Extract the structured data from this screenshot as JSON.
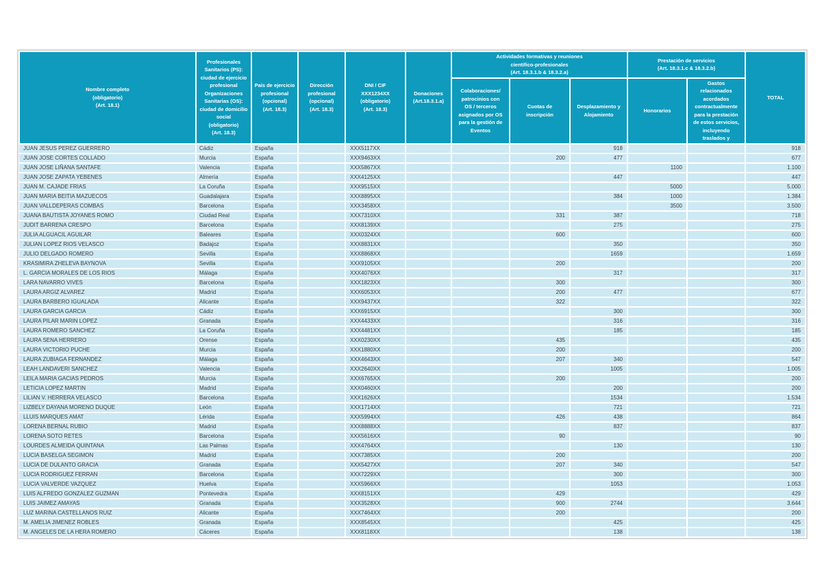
{
  "colors": {
    "header_bg": "#0f9bbd",
    "row_bg": "#cde9f4",
    "header_text": "#ffffff",
    "data_text": "#3d3d3d",
    "outer_border": "#d8d4d6"
  },
  "table": {
    "columns": {
      "nombre": "Nombre completo\n(obligatorio)\n(Art. 18.1)",
      "ciudad": "Profesionales\nSanitarios (PS):\nciudad de ejercicio\nprofesional\nOrganizaciones\nSanitarias (OS):\nciudad de domicilio\nsocial\n(obligatorio)\n(Art. 18.3)",
      "pais": "País de ejercicio\nprofesional\n(opcional)\n(Art. 18.3)",
      "direccion": "Dirección\nprofesional\n(opcional)\n(Art. 18.3)",
      "dni": "DNI / CIF\nXXX1234XX\n(obligatorio)\n(Art. 18.3)",
      "donaciones": "Donaciones\n(Art.18.3.1.a)",
      "grupo_actividades": "Actividades formativas y reuniones\ncientífico-profesionales\n(Art. 18.3.1.b & 18.3.2.a)",
      "colaboraciones": "Colaboraciones/\npatrocinios con\nOS / terceros\nasignados por OS\npara la gestión de\nEventos",
      "cuotas": "Cuotas de\ninscripción",
      "desplazamiento": "Desplazamiento y\nAlojamiento",
      "grupo_prestacion": "Prestación de servicios\n(Art. 18.3.1.c & 18.3.2.b)",
      "honorarios": "Honorarios",
      "gastos": "Gastos\nrelacionados\nacordados\ncontractualmente\npara la prestación\nde estos servicios,\nincluyendo\ntraslados y",
      "total": "TOTAL"
    },
    "rows": [
      {
        "nombre": "JUAN JESUS PEREZ GUERRERO",
        "ciudad": "Cádiz",
        "pais": "España",
        "direccion": "",
        "dni": "XXX5117XX",
        "donaciones": "",
        "colaboraciones": "",
        "cuotas": "",
        "desplazamiento": "918",
        "honorarios": "",
        "gastos": "",
        "total": "918"
      },
      {
        "nombre": "JUAN JOSE CORTES COLLADO",
        "ciudad": "Murcia",
        "pais": "España",
        "direccion": "",
        "dni": "XXX9463XX",
        "donaciones": "",
        "colaboraciones": "",
        "cuotas": "200",
        "desplazamiento": "477",
        "honorarios": "",
        "gastos": "",
        "total": "677"
      },
      {
        "nombre": "JUAN JOSE LIÑANA SANTAFE",
        "ciudad": "Valencia",
        "pais": "España",
        "direccion": "",
        "dni": "XXX5867XX",
        "donaciones": "",
        "colaboraciones": "",
        "cuotas": "",
        "desplazamiento": "",
        "honorarios": "1100",
        "gastos": "",
        "total": "1.100"
      },
      {
        "nombre": "JUAN JOSE ZAPATA YEBENES",
        "ciudad": "Almería",
        "pais": "España",
        "direccion": "",
        "dni": "XXX4125XX",
        "donaciones": "",
        "colaboraciones": "",
        "cuotas": "",
        "desplazamiento": "447",
        "honorarios": "",
        "gastos": "",
        "total": "447"
      },
      {
        "nombre": "JUAN M. CAJADE FRIAS",
        "ciudad": "La Coruña",
        "pais": "España",
        "direccion": "",
        "dni": "XXX9515XX",
        "donaciones": "",
        "colaboraciones": "",
        "cuotas": "",
        "desplazamiento": "",
        "honorarios": "5000",
        "gastos": "",
        "total": "5.000"
      },
      {
        "nombre": "JUAN MARIA BEITIA MAZUECOS",
        "ciudad": "Guadalajara",
        "pais": "España",
        "direccion": "",
        "dni": "XXX8895XX",
        "donaciones": "",
        "colaboraciones": "",
        "cuotas": "",
        "desplazamiento": "384",
        "honorarios": "1000",
        "gastos": "",
        "total": "1.384"
      },
      {
        "nombre": "JUAN VALLDEPERAS COMBAS",
        "ciudad": "Barcelona",
        "pais": "España",
        "direccion": "",
        "dni": "XXX3458XX",
        "donaciones": "",
        "colaboraciones": "",
        "cuotas": "",
        "desplazamiento": "",
        "honorarios": "3500",
        "gastos": "",
        "total": "3.500"
      },
      {
        "nombre": "JUANA BAUTISTA JOYANES ROMO",
        "ciudad": "Ciudad Real",
        "pais": "España",
        "direccion": "",
        "dni": "XXX7310XX",
        "donaciones": "",
        "colaboraciones": "",
        "cuotas": "331",
        "desplazamiento": "387",
        "honorarios": "",
        "gastos": "",
        "total": "718"
      },
      {
        "nombre": "JUDIT BARRENA CRESPO",
        "ciudad": "Barcelona",
        "pais": "España",
        "direccion": "",
        "dni": "XXX8139XX",
        "donaciones": "",
        "colaboraciones": "",
        "cuotas": "",
        "desplazamiento": "275",
        "honorarios": "",
        "gastos": "",
        "total": "275"
      },
      {
        "nombre": "JULIA ALGUACIL AGUILAR",
        "ciudad": "Baleares",
        "pais": "España",
        "direccion": "",
        "dni": "XXX0324XX",
        "donaciones": "",
        "colaboraciones": "",
        "cuotas": "600",
        "desplazamiento": "",
        "honorarios": "",
        "gastos": "",
        "total": "600"
      },
      {
        "nombre": "JULIAN LOPEZ RIOS VELASCO",
        "ciudad": "Badajoz",
        "pais": "España",
        "direccion": "",
        "dni": "XXX8831XX",
        "donaciones": "",
        "colaboraciones": "",
        "cuotas": "",
        "desplazamiento": "350",
        "honorarios": "",
        "gastos": "",
        "total": "350"
      },
      {
        "nombre": "JULIO DELGADO ROMERO",
        "ciudad": "Sevilla",
        "pais": "España",
        "direccion": "",
        "dni": "XXX8868XX",
        "donaciones": "",
        "colaboraciones": "",
        "cuotas": "",
        "desplazamiento": "1659",
        "honorarios": "",
        "gastos": "",
        "total": "1.659"
      },
      {
        "nombre": "KRASIMIRA ZHELEVA BAYNOVA",
        "ciudad": "Sevilla",
        "pais": "España",
        "direccion": "",
        "dni": "XXX9105XX",
        "donaciones": "",
        "colaboraciones": "",
        "cuotas": "200",
        "desplazamiento": "",
        "honorarios": "",
        "gastos": "",
        "total": "200"
      },
      {
        "nombre": "L. GARCIA MORALES DE LOS RIOS",
        "ciudad": "Málaga",
        "pais": "España",
        "direccion": "",
        "dni": "XXX4076XX",
        "donaciones": "",
        "colaboraciones": "",
        "cuotas": "",
        "desplazamiento": "317",
        "honorarios": "",
        "gastos": "",
        "total": "317"
      },
      {
        "nombre": "LARA NAVARRO VIVES",
        "ciudad": "Barcelona",
        "pais": "España",
        "direccion": "",
        "dni": "XXX1823XX",
        "donaciones": "",
        "colaboraciones": "",
        "cuotas": "300",
        "desplazamiento": "",
        "honorarios": "",
        "gastos": "",
        "total": "300"
      },
      {
        "nombre": "LAURA ARGIZ ALVAREZ",
        "ciudad": "Madrid",
        "pais": "España",
        "direccion": "",
        "dni": "XXX6053XX",
        "donaciones": "",
        "colaboraciones": "",
        "cuotas": "200",
        "desplazamiento": "477",
        "honorarios": "",
        "gastos": "",
        "total": "677"
      },
      {
        "nombre": "LAURA BARBERO IGUALADA",
        "ciudad": "Alicante",
        "pais": "España",
        "direccion": "",
        "dni": "XXX9437XX",
        "donaciones": "",
        "colaboraciones": "",
        "cuotas": "322",
        "desplazamiento": "",
        "honorarios": "",
        "gastos": "",
        "total": "322"
      },
      {
        "nombre": "LAURA GARCIA GARCIA",
        "ciudad": "Cádiz",
        "pais": "España",
        "direccion": "",
        "dni": "XXX6915XX",
        "donaciones": "",
        "colaboraciones": "",
        "cuotas": "",
        "desplazamiento": "300",
        "honorarios": "",
        "gastos": "",
        "total": "300"
      },
      {
        "nombre": "LAURA PILAR MARIN LOPEZ",
        "ciudad": "Granada",
        "pais": "España",
        "direccion": "",
        "dni": "XXX4433XX",
        "donaciones": "",
        "colaboraciones": "",
        "cuotas": "",
        "desplazamiento": "316",
        "honorarios": "",
        "gastos": "",
        "total": "316"
      },
      {
        "nombre": "LAURA ROMERO SANCHEZ",
        "ciudad": "La Coruña",
        "pais": "España",
        "direccion": "",
        "dni": "XXX4481XX",
        "donaciones": "",
        "colaboraciones": "",
        "cuotas": "",
        "desplazamiento": "185",
        "honorarios": "",
        "gastos": "",
        "total": "185"
      },
      {
        "nombre": "LAURA SENA HERRERO",
        "ciudad": "Orense",
        "pais": "España",
        "direccion": "",
        "dni": "XXX0230XX",
        "donaciones": "",
        "colaboraciones": "",
        "cuotas": "435",
        "desplazamiento": "",
        "honorarios": "",
        "gastos": "",
        "total": "435"
      },
      {
        "nombre": "LAURA VICTORIO PUCHE",
        "ciudad": "Murcia",
        "pais": "España",
        "direccion": "",
        "dni": "XXX1880XX",
        "donaciones": "",
        "colaboraciones": "",
        "cuotas": "200",
        "desplazamiento": "",
        "honorarios": "",
        "gastos": "",
        "total": "200"
      },
      {
        "nombre": "LAURA ZUBIAGA FERNANDEZ",
        "ciudad": "Málaga",
        "pais": "España",
        "direccion": "",
        "dni": "XXX4643XX",
        "donaciones": "",
        "colaboraciones": "",
        "cuotas": "207",
        "desplazamiento": "340",
        "honorarios": "",
        "gastos": "",
        "total": "547"
      },
      {
        "nombre": "LEAH LANDAVERI SANCHEZ",
        "ciudad": "Valencia",
        "pais": "España",
        "direccion": "",
        "dni": "XXX2640XX",
        "donaciones": "",
        "colaboraciones": "",
        "cuotas": "",
        "desplazamiento": "1005",
        "honorarios": "",
        "gastos": "",
        "total": "1.005"
      },
      {
        "nombre": "LEILA MARIA GACIAS PEDROS",
        "ciudad": "Murcia",
        "pais": "España",
        "direccion": "",
        "dni": "XXX6765XX",
        "donaciones": "",
        "colaboraciones": "",
        "cuotas": "200",
        "desplazamiento": "",
        "honorarios": "",
        "gastos": "",
        "total": "200"
      },
      {
        "nombre": "LETICIA LOPEZ MARTIN",
        "ciudad": "Madrid",
        "pais": "España",
        "direccion": "",
        "dni": "XXX0460XX",
        "donaciones": "",
        "colaboraciones": "",
        "cuotas": "",
        "desplazamiento": "200",
        "honorarios": "",
        "gastos": "",
        "total": "200"
      },
      {
        "nombre": "LILIAN V. HERRERA VELASCO",
        "ciudad": "Barcelona",
        "pais": "España",
        "direccion": "",
        "dni": "XXX1626XX",
        "donaciones": "",
        "colaboraciones": "",
        "cuotas": "",
        "desplazamiento": "1534",
        "honorarios": "",
        "gastos": "",
        "total": "1.534"
      },
      {
        "nombre": "LIZBELY DAYANA MORENO DUQUE",
        "ciudad": "León",
        "pais": "España",
        "direccion": "",
        "dni": "XXX1714XX",
        "donaciones": "",
        "colaboraciones": "",
        "cuotas": "",
        "desplazamiento": "721",
        "honorarios": "",
        "gastos": "",
        "total": "721"
      },
      {
        "nombre": "LLUIS MARQUES AMAT",
        "ciudad": "Lérida",
        "pais": "España",
        "direccion": "",
        "dni": "XXX5994XX",
        "donaciones": "",
        "colaboraciones": "",
        "cuotas": "426",
        "desplazamiento": "438",
        "honorarios": "",
        "gastos": "",
        "total": "864"
      },
      {
        "nombre": "LORENA BERNAL RUBIO",
        "ciudad": "Madrid",
        "pais": "España",
        "direccion": "",
        "dni": "XXX8888XX",
        "donaciones": "",
        "colaboraciones": "",
        "cuotas": "",
        "desplazamiento": "837",
        "honorarios": "",
        "gastos": "",
        "total": "837"
      },
      {
        "nombre": "LORENA SOTO RETES",
        "ciudad": "Barcelona",
        "pais": "España",
        "direccion": "",
        "dni": "XXX5616XX",
        "donaciones": "",
        "colaboraciones": "",
        "cuotas": "90",
        "desplazamiento": "",
        "honorarios": "",
        "gastos": "",
        "total": "90"
      },
      {
        "nombre": "LOURDES ALMEIDA QUINTANA",
        "ciudad": "Las Palmas",
        "pais": "España",
        "direccion": "",
        "dni": "XXX4764XX",
        "donaciones": "",
        "colaboraciones": "",
        "cuotas": "",
        "desplazamiento": "130",
        "honorarios": "",
        "gastos": "",
        "total": "130"
      },
      {
        "nombre": "LUCIA BASELGA SEGIMON",
        "ciudad": "Madrid",
        "pais": "España",
        "direccion": "",
        "dni": "XXX7385XX",
        "donaciones": "",
        "colaboraciones": "",
        "cuotas": "200",
        "desplazamiento": "",
        "honorarios": "",
        "gastos": "",
        "total": "200"
      },
      {
        "nombre": "LUCIA DE DULANTO GRACIA",
        "ciudad": "Granada",
        "pais": "España",
        "direccion": "",
        "dni": "XXX5427XX",
        "donaciones": "",
        "colaboraciones": "",
        "cuotas": "207",
        "desplazamiento": "340",
        "honorarios": "",
        "gastos": "",
        "total": "547"
      },
      {
        "nombre": "LUCIA RODRIGUEZ FERRAN",
        "ciudad": "Barcelona",
        "pais": "España",
        "direccion": "",
        "dni": "XXX7229XX",
        "donaciones": "",
        "colaboraciones": "",
        "cuotas": "",
        "desplazamiento": "300",
        "honorarios": "",
        "gastos": "",
        "total": "300"
      },
      {
        "nombre": "LUCIA VALVERDE VAZQUEZ",
        "ciudad": "Huelva",
        "pais": "España",
        "direccion": "",
        "dni": "XXX5966XX",
        "donaciones": "",
        "colaboraciones": "",
        "cuotas": "",
        "desplazamiento": "1053",
        "honorarios": "",
        "gastos": "",
        "total": "1.053"
      },
      {
        "nombre": "LUIS ALFREDO GONZALEZ GUZMAN",
        "ciudad": "Pontevedra",
        "pais": "España",
        "direccion": "",
        "dni": "XXX8151XX",
        "donaciones": "",
        "colaboraciones": "",
        "cuotas": "429",
        "desplazamiento": "",
        "honorarios": "",
        "gastos": "",
        "total": "429"
      },
      {
        "nombre": "LUIS JAIMEZ AMAYAS",
        "ciudad": "Granada",
        "pais": "España",
        "direccion": "",
        "dni": "XXX3528XX",
        "donaciones": "",
        "colaboraciones": "",
        "cuotas": "900",
        "desplazamiento": "2744",
        "honorarios": "",
        "gastos": "",
        "total": "3.644"
      },
      {
        "nombre": "LUZ MARINA CASTELLANOS RUIZ",
        "ciudad": "Alicante",
        "pais": "España",
        "direccion": "",
        "dni": "XXX7464XX",
        "donaciones": "",
        "colaboraciones": "",
        "cuotas": "200",
        "desplazamiento": "",
        "honorarios": "",
        "gastos": "",
        "total": "200"
      },
      {
        "nombre": "M. AMELIA JIMENEZ ROBLES",
        "ciudad": "Granada",
        "pais": "España",
        "direccion": "",
        "dni": "XXX8545XX",
        "donaciones": "",
        "colaboraciones": "",
        "cuotas": "",
        "desplazamiento": "425",
        "honorarios": "",
        "gastos": "",
        "total": "425"
      },
      {
        "nombre": "M. ANGELES DE LA HERA ROMERO",
        "ciudad": "Cáceres",
        "pais": "España",
        "direccion": "",
        "dni": "XXX8118XX",
        "donaciones": "",
        "colaboraciones": "",
        "cuotas": "",
        "desplazamiento": "138",
        "honorarios": "",
        "gastos": "",
        "total": "138"
      }
    ]
  }
}
